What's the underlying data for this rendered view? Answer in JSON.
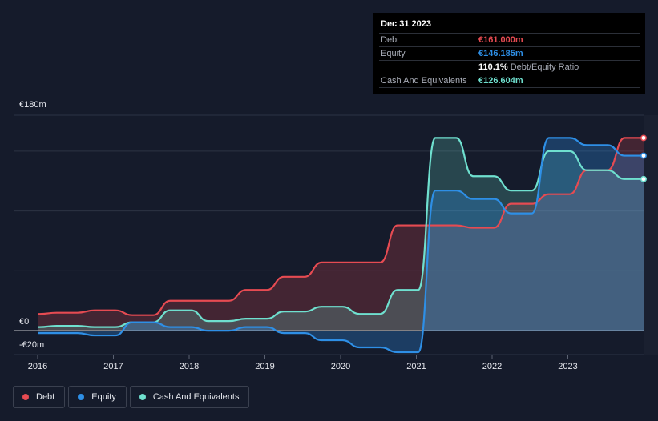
{
  "tooltip": {
    "date": "Dec 31 2023",
    "rows": [
      {
        "label": "Debt",
        "value": "€161.000m",
        "color": "#e64b52"
      },
      {
        "label": "Equity",
        "value": "€146.185m",
        "color": "#2e8fe6"
      },
      {
        "label": "",
        "value": "110.1%",
        "suffix": "Debt/Equity Ratio",
        "color": "#ffffff"
      },
      {
        "label": "Cash And Equivalents",
        "value": "€126.604m",
        "color": "#6fe0cf"
      }
    ]
  },
  "legend": [
    {
      "label": "Debt",
      "color": "#e64b52"
    },
    {
      "label": "Equity",
      "color": "#2e8fe6"
    },
    {
      "label": "Cash And Equivalents",
      "color": "#6fe0cf"
    }
  ],
  "chart_data": {
    "type": "area",
    "title": "",
    "xlabel": "",
    "ylabel": "",
    "y_tick_labels": [
      "€180m",
      "€0",
      "-€20m"
    ],
    "x_tick_labels": [
      "2016",
      "2017",
      "2018",
      "2019",
      "2020",
      "2021",
      "2022",
      "2023"
    ],
    "x_ticks": [
      2016,
      2017,
      2018,
      2019,
      2020,
      2021,
      2022,
      2023
    ],
    "xlim": [
      2016,
      2024
    ],
    "ylim": [
      -20,
      180
    ],
    "y_gridlines": [
      0,
      50,
      100,
      150
    ],
    "series": [
      {
        "name": "Debt",
        "color": "#e64b52",
        "points": [
          [
            2016.0,
            14
          ],
          [
            2016.25,
            15
          ],
          [
            2016.5,
            15
          ],
          [
            2016.75,
            17
          ],
          [
            2017.0,
            17
          ],
          [
            2017.25,
            13
          ],
          [
            2017.5,
            13
          ],
          [
            2017.75,
            25
          ],
          [
            2018.0,
            25
          ],
          [
            2018.25,
            25
          ],
          [
            2018.5,
            25
          ],
          [
            2018.75,
            34
          ],
          [
            2019.0,
            34
          ],
          [
            2019.25,
            45
          ],
          [
            2019.5,
            45
          ],
          [
            2019.75,
            57
          ],
          [
            2020.0,
            57
          ],
          [
            2020.25,
            57
          ],
          [
            2020.5,
            57
          ],
          [
            2020.75,
            88
          ],
          [
            2021.0,
            88
          ],
          [
            2021.25,
            88
          ],
          [
            2021.5,
            88
          ],
          [
            2021.75,
            86
          ],
          [
            2022.0,
            86
          ],
          [
            2022.25,
            106
          ],
          [
            2022.5,
            106
          ],
          [
            2022.75,
            114
          ],
          [
            2023.0,
            114
          ],
          [
            2023.25,
            134
          ],
          [
            2023.5,
            134
          ],
          [
            2023.75,
            161
          ],
          [
            2024.0,
            161
          ]
        ]
      },
      {
        "name": "Equity",
        "color": "#2e8fe6",
        "points": [
          [
            2016.0,
            -2
          ],
          [
            2016.25,
            -2
          ],
          [
            2016.5,
            -2
          ],
          [
            2016.75,
            -4
          ],
          [
            2017.0,
            -4
          ],
          [
            2017.25,
            7
          ],
          [
            2017.5,
            7
          ],
          [
            2017.75,
            3
          ],
          [
            2018.0,
            3
          ],
          [
            2018.25,
            0
          ],
          [
            2018.5,
            0
          ],
          [
            2018.75,
            3
          ],
          [
            2019.0,
            3
          ],
          [
            2019.25,
            -2
          ],
          [
            2019.5,
            -2
          ],
          [
            2019.75,
            -8
          ],
          [
            2020.0,
            -8
          ],
          [
            2020.25,
            -14
          ],
          [
            2020.5,
            -14
          ],
          [
            2020.75,
            -18
          ],
          [
            2021.0,
            -18
          ],
          [
            2021.25,
            117
          ],
          [
            2021.5,
            117
          ],
          [
            2021.75,
            110
          ],
          [
            2022.0,
            110
          ],
          [
            2022.25,
            98
          ],
          [
            2022.5,
            98
          ],
          [
            2022.75,
            161
          ],
          [
            2023.0,
            161
          ],
          [
            2023.25,
            155
          ],
          [
            2023.5,
            155
          ],
          [
            2023.75,
            146.185
          ],
          [
            2024.0,
            146.185
          ]
        ]
      },
      {
        "name": "Cash And Equivalents",
        "color": "#6fe0cf",
        "points": [
          [
            2016.0,
            3
          ],
          [
            2016.25,
            4
          ],
          [
            2016.5,
            4
          ],
          [
            2016.75,
            3
          ],
          [
            2017.0,
            3
          ],
          [
            2017.25,
            7
          ],
          [
            2017.5,
            7
          ],
          [
            2017.75,
            17
          ],
          [
            2018.0,
            17
          ],
          [
            2018.25,
            8
          ],
          [
            2018.5,
            8
          ],
          [
            2018.75,
            10
          ],
          [
            2019.0,
            10
          ],
          [
            2019.25,
            16
          ],
          [
            2019.5,
            16
          ],
          [
            2019.75,
            20
          ],
          [
            2020.0,
            20
          ],
          [
            2020.25,
            14
          ],
          [
            2020.5,
            14
          ],
          [
            2020.75,
            34
          ],
          [
            2021.0,
            34
          ],
          [
            2021.25,
            161
          ],
          [
            2021.5,
            161
          ],
          [
            2021.75,
            129
          ],
          [
            2022.0,
            129
          ],
          [
            2022.25,
            117
          ],
          [
            2022.5,
            117
          ],
          [
            2022.75,
            150
          ],
          [
            2023.0,
            150
          ],
          [
            2023.25,
            134
          ],
          [
            2023.5,
            134
          ],
          [
            2023.75,
            126.604
          ],
          [
            2024.0,
            126.604
          ]
        ]
      }
    ]
  }
}
